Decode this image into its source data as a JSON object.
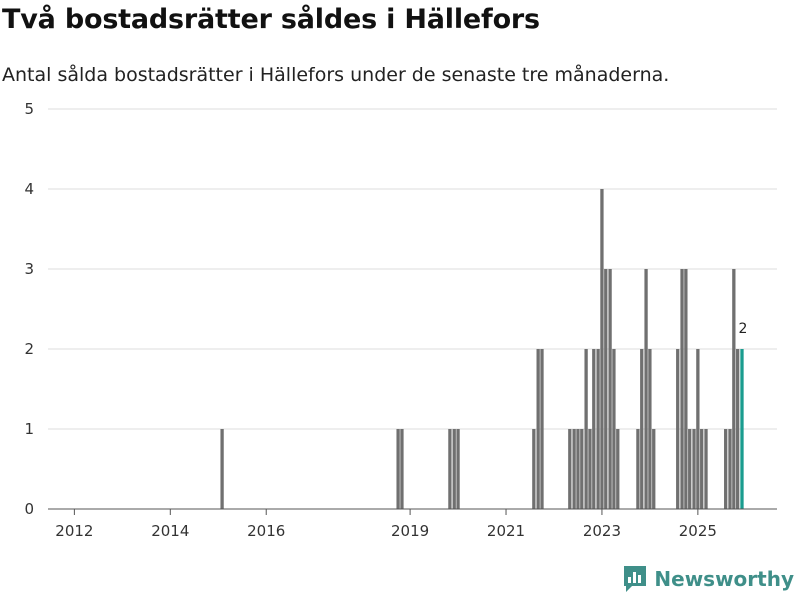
{
  "header": {
    "title": "Två bostadsrätter såldes i Hällefors",
    "subtitle": "Antal sålda bostadsrätter i Hällefors under de senaste tre månaderna."
  },
  "brand": {
    "name": "Newsworthy",
    "icon": "newsworthy-logo-icon"
  },
  "colors": {
    "bar": "#707070",
    "highlight": "#1a9c8f",
    "grid": "#dddddd",
    "axis": "#555555"
  },
  "chart_data": {
    "type": "bar",
    "title": "Två bostadsrätter såldes i Hällefors",
    "subtitle": "Antal sålda bostadsrätter i Hällefors under de senaste tre månaderna.",
    "xlabel": "",
    "ylabel": "",
    "ylim": [
      0,
      5
    ],
    "yticks": [
      0,
      1,
      2,
      3,
      4,
      5
    ],
    "xlim": [
      2011.45,
      2026.65
    ],
    "xticks": [
      {
        "value": 2012,
        "label": "2012"
      },
      {
        "value": 2014,
        "label": "2014"
      },
      {
        "value": 2016,
        "label": "2016"
      },
      {
        "value": 2019,
        "label": "2019"
      },
      {
        "value": 2021,
        "label": "2021"
      },
      {
        "value": 2023,
        "label": "2023"
      },
      {
        "value": 2025,
        "label": "2025"
      }
    ],
    "grid": true,
    "series": [
      {
        "name": "Sålda bostadsrätter",
        "points": [
          {
            "x": 2015.08,
            "y": 1
          },
          {
            "x": 2018.75,
            "y": 1
          },
          {
            "x": 2018.83,
            "y": 1
          },
          {
            "x": 2019.83,
            "y": 1
          },
          {
            "x": 2019.92,
            "y": 1
          },
          {
            "x": 2020.0,
            "y": 1
          },
          {
            "x": 2021.58,
            "y": 1
          },
          {
            "x": 2021.67,
            "y": 2
          },
          {
            "x": 2021.75,
            "y": 2
          },
          {
            "x": 2022.33,
            "y": 1
          },
          {
            "x": 2022.42,
            "y": 1
          },
          {
            "x": 2022.5,
            "y": 1
          },
          {
            "x": 2022.58,
            "y": 1
          },
          {
            "x": 2022.67,
            "y": 2
          },
          {
            "x": 2022.75,
            "y": 1
          },
          {
            "x": 2022.83,
            "y": 2
          },
          {
            "x": 2022.92,
            "y": 2
          },
          {
            "x": 2023.0,
            "y": 4
          },
          {
            "x": 2023.08,
            "y": 3
          },
          {
            "x": 2023.17,
            "y": 3
          },
          {
            "x": 2023.25,
            "y": 2
          },
          {
            "x": 2023.33,
            "y": 1
          },
          {
            "x": 2023.75,
            "y": 1
          },
          {
            "x": 2023.83,
            "y": 2
          },
          {
            "x": 2023.92,
            "y": 3
          },
          {
            "x": 2024.0,
            "y": 2
          },
          {
            "x": 2024.08,
            "y": 1
          },
          {
            "x": 2024.58,
            "y": 2
          },
          {
            "x": 2024.67,
            "y": 3
          },
          {
            "x": 2024.75,
            "y": 3
          },
          {
            "x": 2024.83,
            "y": 1
          },
          {
            "x": 2024.92,
            "y": 1
          },
          {
            "x": 2025.0,
            "y": 2
          },
          {
            "x": 2025.08,
            "y": 1
          },
          {
            "x": 2025.17,
            "y": 1
          },
          {
            "x": 2025.58,
            "y": 1
          },
          {
            "x": 2025.67,
            "y": 1
          },
          {
            "x": 2025.75,
            "y": 3
          },
          {
            "x": 2025.83,
            "y": 2
          },
          {
            "x": 2025.92,
            "y": 2,
            "highlight": true,
            "label": "2"
          }
        ]
      }
    ]
  }
}
